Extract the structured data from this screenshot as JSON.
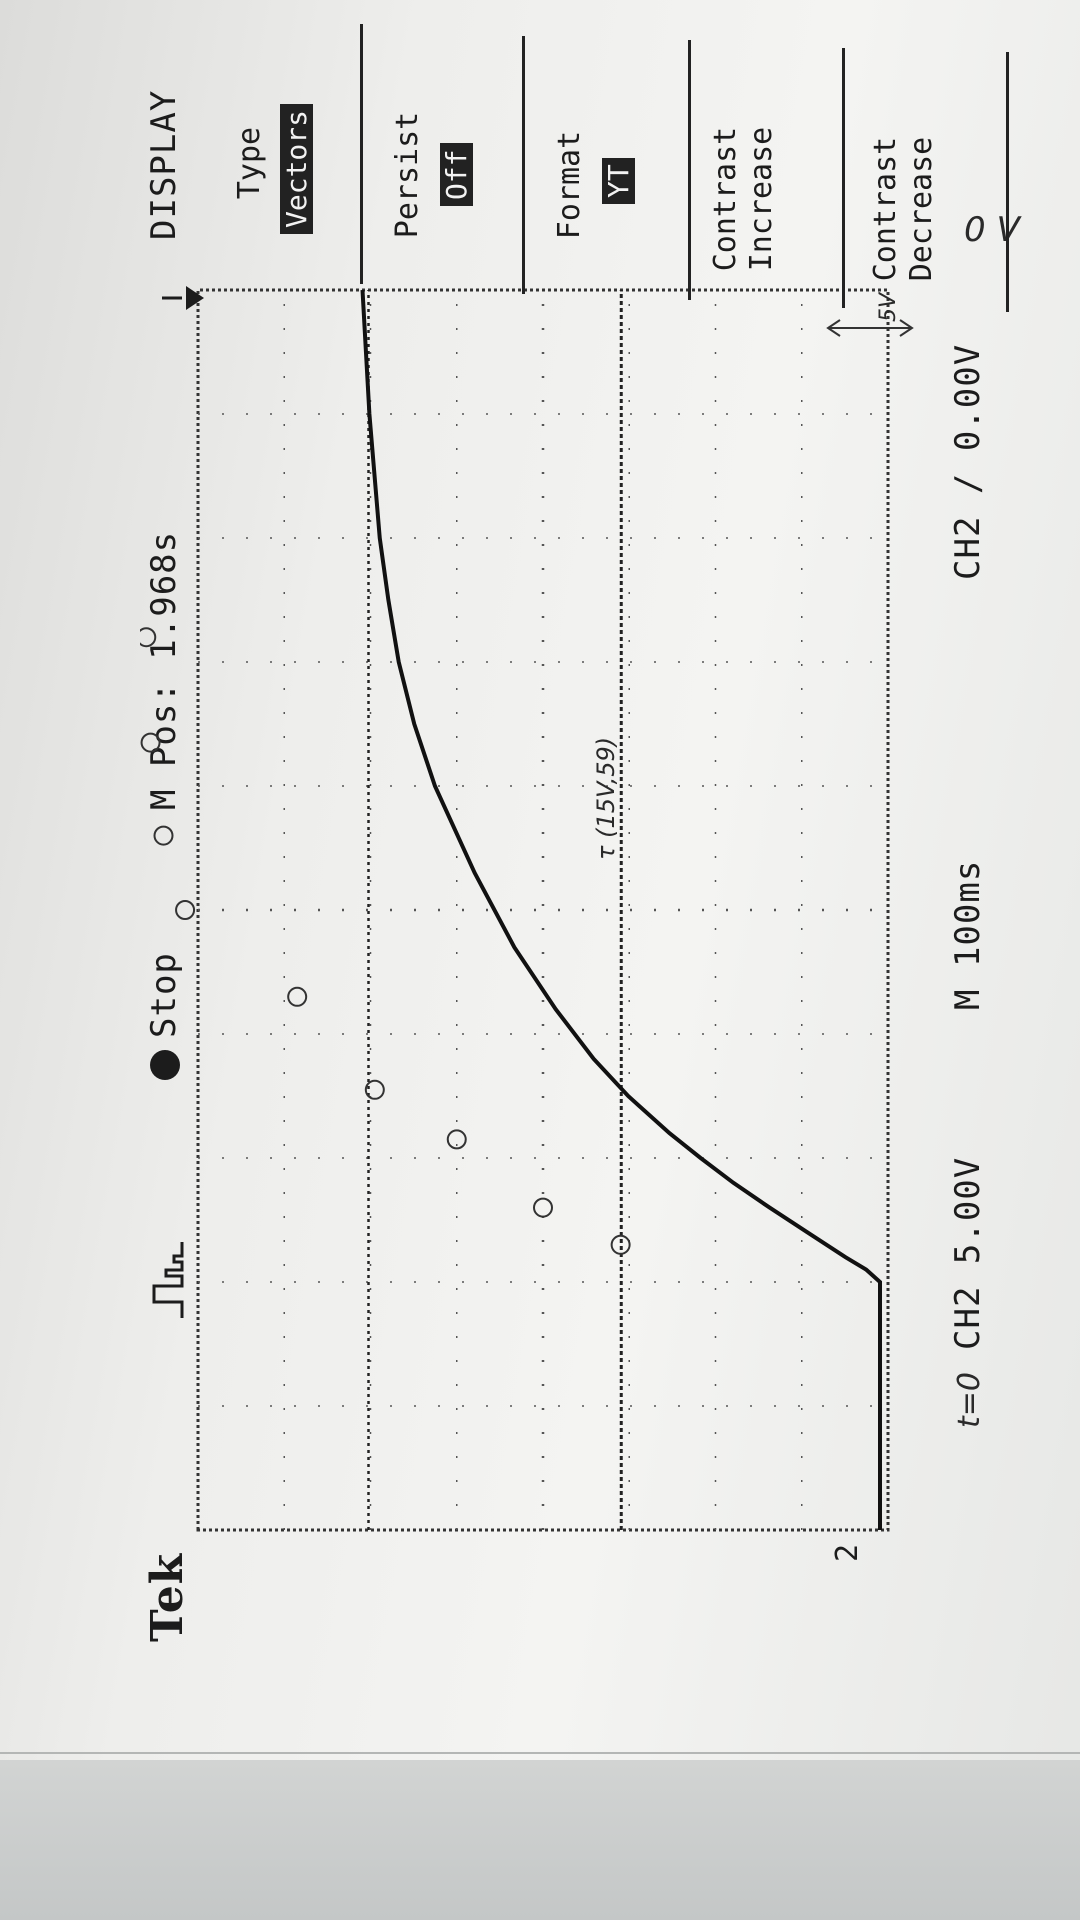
{
  "scope": {
    "brand": "Tek",
    "run_state": "Stop",
    "trigger_position": "M Pos: 1.968s",
    "channel_scale": "CH2  5.00V",
    "timebase": "M 100ms",
    "trigger_info": "CH2 ∕ 0.00V",
    "channel_marker": "2"
  },
  "display_menu": {
    "title": "DISPLAY",
    "items": [
      {
        "label": "Type",
        "value": "Vectors"
      },
      {
        "label": "Persist",
        "value": "Off"
      },
      {
        "label": "Format",
        "value": "YT"
      },
      {
        "label": "Contrast\nIncrease",
        "value": ""
      },
      {
        "label": "Contrast\nDecrease",
        "value": ""
      }
    ]
  },
  "annotations": {
    "zero_volts": "0 V",
    "time_zero": "t=0",
    "division": "5V",
    "tau_point": "τ (15V,59)"
  },
  "chart_data": {
    "type": "line",
    "title": "",
    "xlabel": "",
    "ylabel": "",
    "xunit_per_div": "100ms",
    "yunit_per_div": "5.00V",
    "divisions_x": 10,
    "divisions_y": 8,
    "grid": true,
    "series": [
      {
        "x_div": [
          0.0,
          0.5,
          1.0,
          1.5,
          2.0,
          2.1,
          2.2,
          2.4,
          2.6,
          2.8,
          3.0,
          3.2,
          3.5,
          3.8,
          4.2,
          4.7,
          5.3,
          6.0,
          6.5,
          7.0,
          7.5,
          8.0,
          8.5,
          9.0,
          9.5,
          10.0
        ],
        "y_volts": [
          0.0,
          0.0,
          0.0,
          0.0,
          0.0,
          0.8,
          2.0,
          4.2,
          6.4,
          8.5,
          10.4,
          12.2,
          14.6,
          16.6,
          18.8,
          21.2,
          23.5,
          25.8,
          27.0,
          27.9,
          28.5,
          29.0,
          29.3,
          29.6,
          29.8,
          30.0
        ]
      }
    ],
    "marked_points_div": [
      [
        2.3,
        3.1
      ],
      [
        2.6,
        4.0
      ],
      [
        3.15,
        5.0
      ],
      [
        3.55,
        5.95
      ],
      [
        4.3,
        6.85
      ],
      [
        5.0,
        8.15
      ],
      [
        5.6,
        8.4
      ],
      [
        6.35,
        8.55
      ],
      [
        7.2,
        8.6
      ]
    ]
  }
}
